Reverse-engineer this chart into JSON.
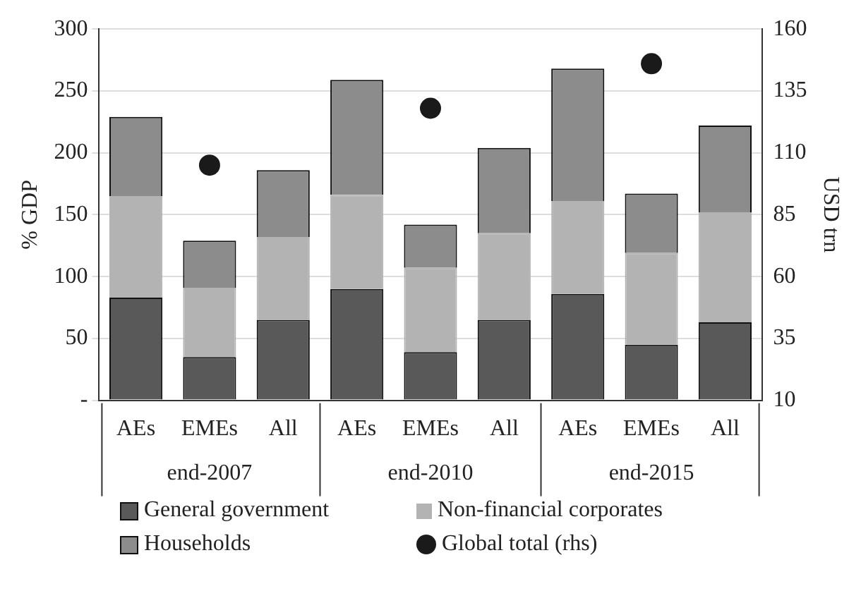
{
  "chart_data": {
    "type": "bar",
    "stacked": true,
    "ylabel": "% GDP",
    "y2label": "USD trn",
    "categories": [
      "AEs",
      "EMEs",
      "All",
      "AEs",
      "EMEs",
      "All",
      "AEs",
      "EMEs",
      "All"
    ],
    "annotations": [
      "end-2007",
      "end-2010",
      "end-2015"
    ],
    "series": [
      {
        "name": "General government",
        "color": "#595959",
        "values": [
          83,
          35,
          65,
          90,
          39,
          65,
          86,
          45,
          63
        ]
      },
      {
        "name": "Non-financial corporates",
        "color": "#b3b3b3",
        "values": [
          82,
          56,
          67,
          76,
          68,
          70,
          75,
          74,
          89
        ]
      },
      {
        "name": "Households",
        "color": "#8c8c8c",
        "values": [
          64,
          38,
          54,
          93,
          35,
          69,
          107,
          48,
          70
        ]
      },
      {
        "name": "Global total (rhs)",
        "type": "scatter",
        "axis": "y2",
        "marker": "circle",
        "color": "#1a1a1a",
        "values": [
          null,
          105,
          null,
          null,
          128,
          null,
          null,
          146,
          null
        ]
      }
    ],
    "ylim": [
      0,
      300
    ],
    "yticks": [
      {
        "value": 0,
        "label": "-"
      },
      50,
      100,
      150,
      200,
      250,
      300
    ],
    "y2lim": [
      10,
      160
    ],
    "y2ticks": [
      10,
      35,
      60,
      85,
      110,
      135,
      160
    ],
    "grid": "y",
    "legend": "bottom"
  }
}
